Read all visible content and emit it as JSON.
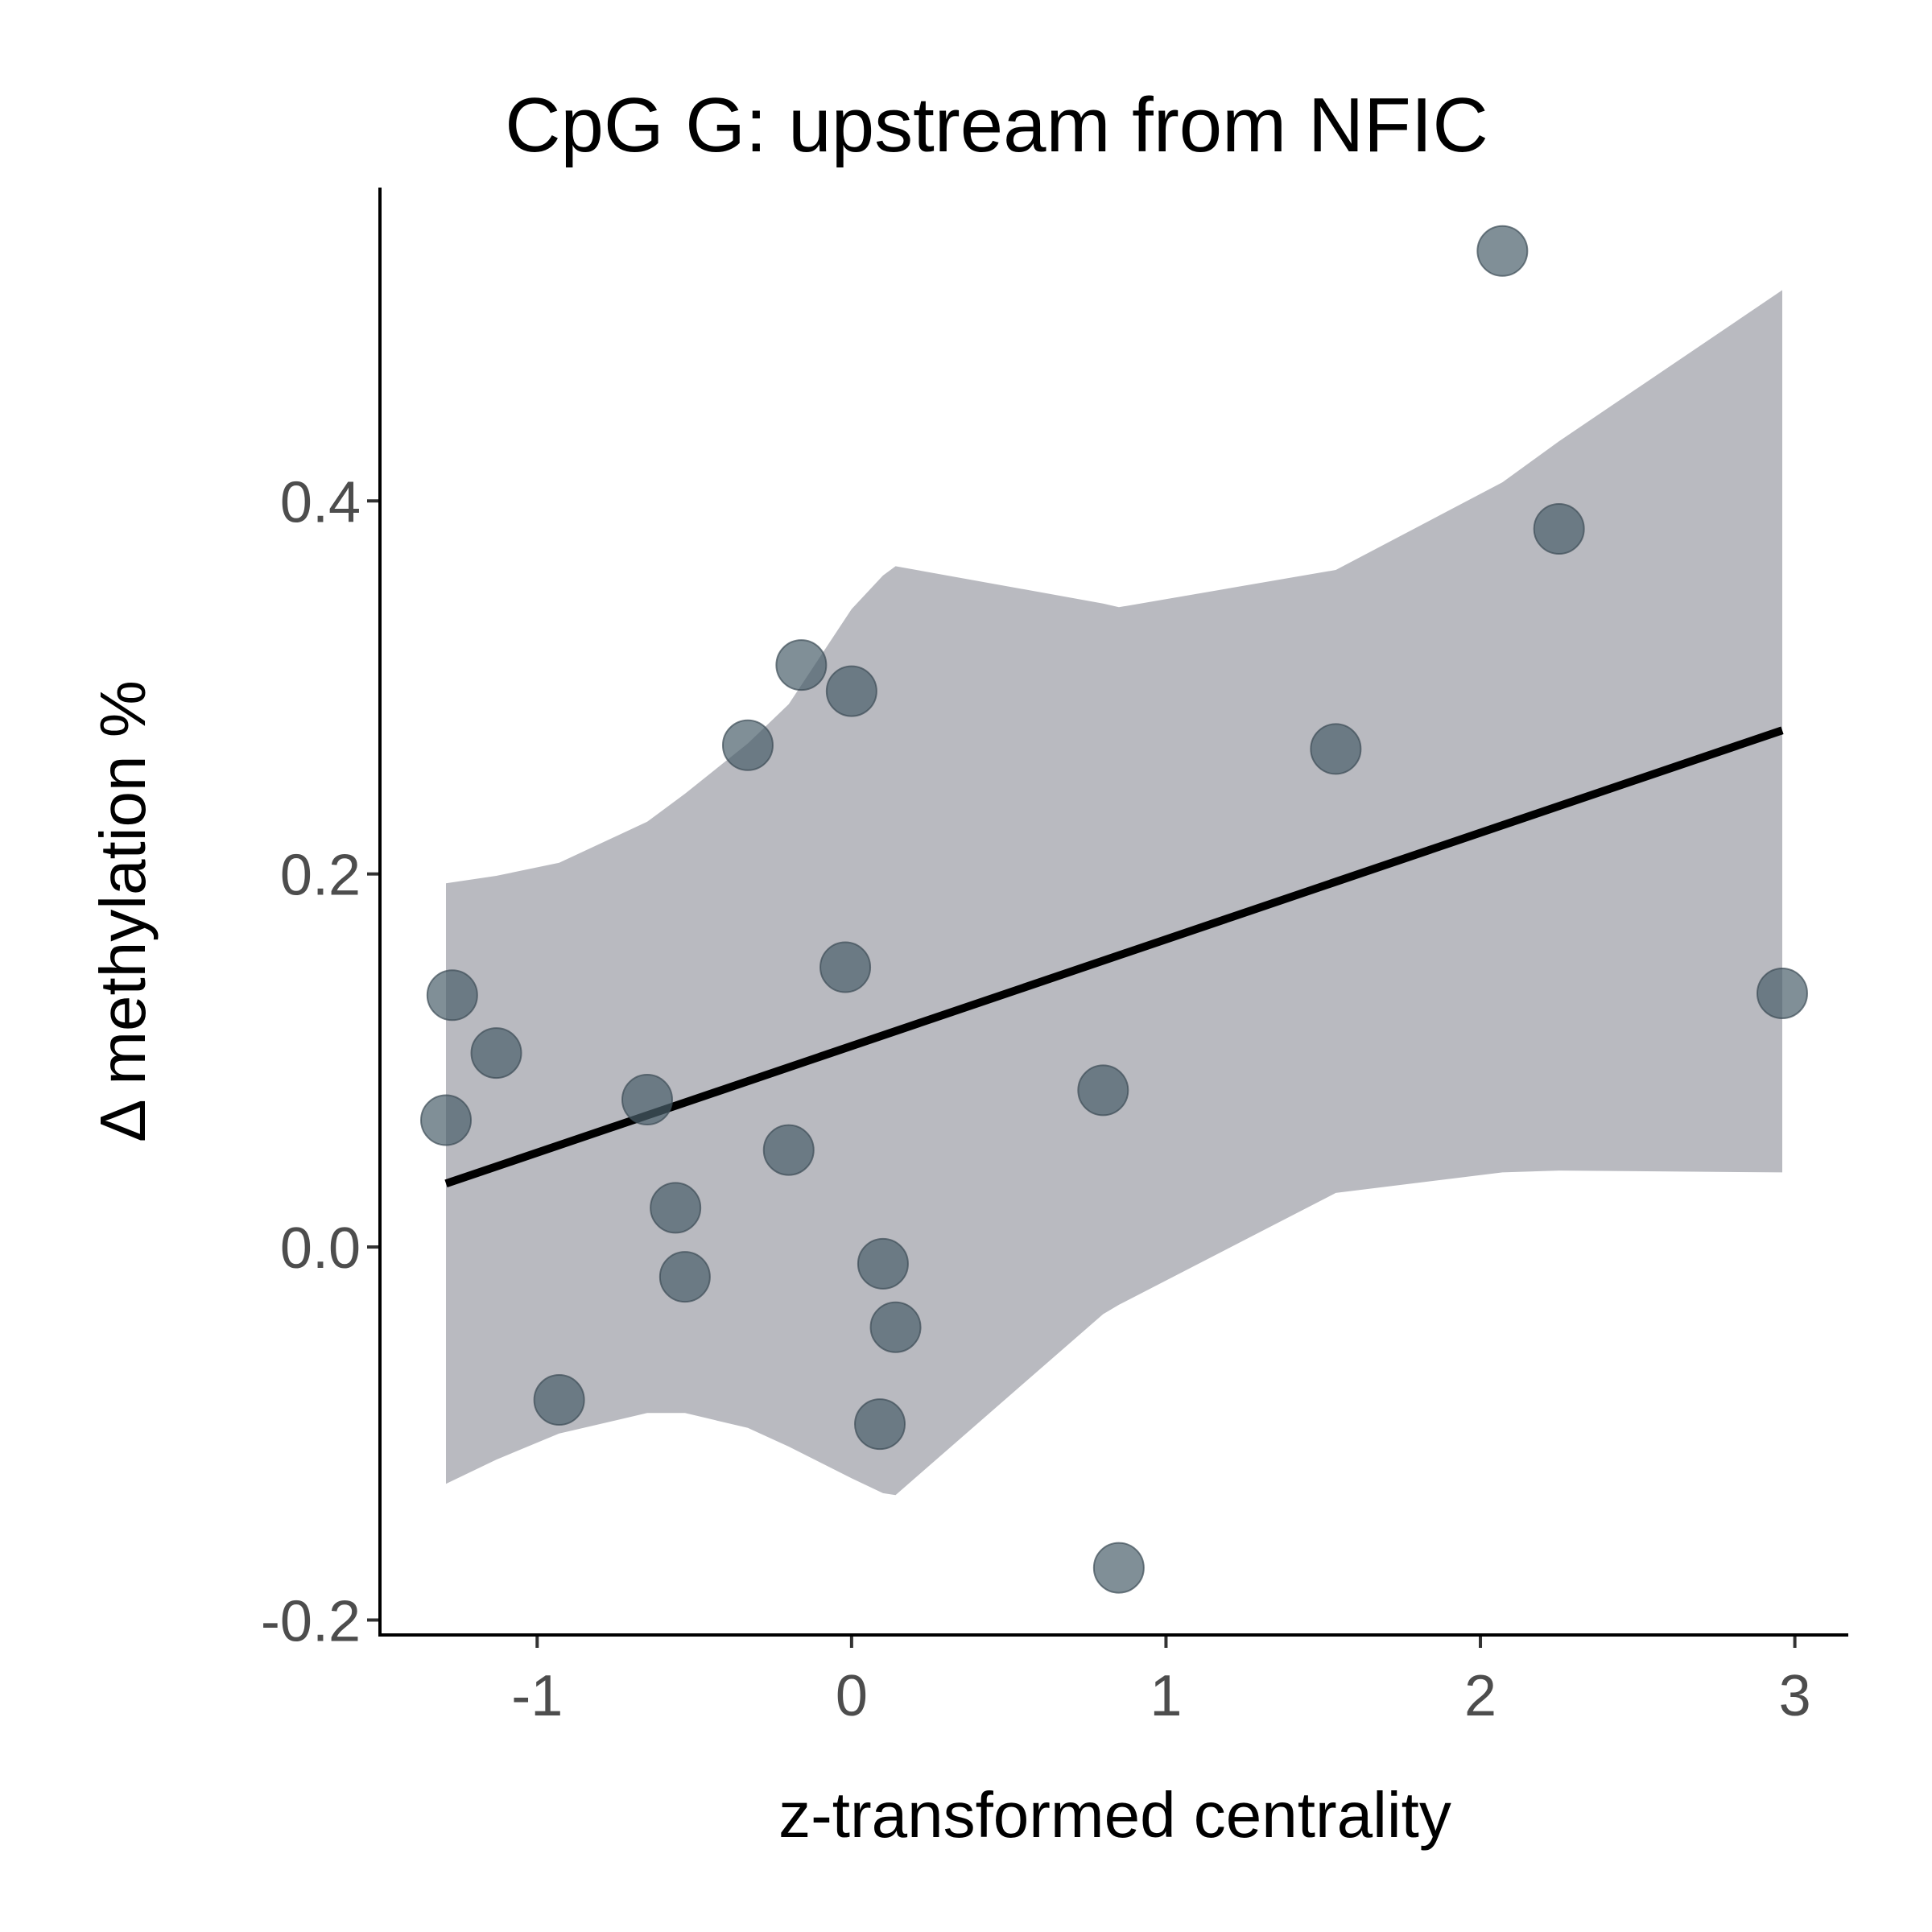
{
  "chart_data": {
    "type": "scatter",
    "title": "CpG G: upstream from NFIC",
    "xlabel": "z-transformed centrality",
    "ylabel": "Δ methylation %",
    "xlim": [
      -1.5,
      3.17
    ],
    "ylim": [
      -0.208,
      0.568
    ],
    "x_ticks": [
      -1,
      0,
      1,
      2,
      3
    ],
    "x_tick_labels": [
      "-1",
      "0",
      "1",
      "2",
      "3"
    ],
    "y_ticks": [
      -0.2,
      0.0,
      0.2,
      0.4
    ],
    "y_tick_labels": [
      "-0.2",
      "0.0",
      "0.2",
      "0.4"
    ],
    "grid": false,
    "series": [
      {
        "points": [
          {
            "x": 2.07,
            "y": 0.534
          },
          {
            "x": 2.25,
            "y": 0.385
          },
          {
            "x": -0.16,
            "y": 0.312
          },
          {
            "x": 0.0,
            "y": 0.298
          },
          {
            "x": -0.33,
            "y": 0.269
          },
          {
            "x": 1.54,
            "y": 0.267
          },
          {
            "x": -0.02,
            "y": 0.15
          },
          {
            "x": -1.27,
            "y": 0.135
          },
          {
            "x": 2.96,
            "y": 0.136
          },
          {
            "x": -1.13,
            "y": 0.104
          },
          {
            "x": 0.8,
            "y": 0.084
          },
          {
            "x": -0.65,
            "y": 0.079
          },
          {
            "x": -1.29,
            "y": 0.068
          },
          {
            "x": -0.2,
            "y": 0.052
          },
          {
            "x": -0.56,
            "y": 0.021
          },
          {
            "x": 0.1,
            "y": -0.009
          },
          {
            "x": -0.53,
            "y": -0.016
          },
          {
            "x": 0.14,
            "y": -0.043
          },
          {
            "x": -0.93,
            "y": -0.082
          },
          {
            "x": 0.09,
            "y": -0.095
          },
          {
            "x": 0.85,
            "y": -0.172
          }
        ],
        "color": "#4a5f6b"
      }
    ],
    "trend_line": {
      "x": [
        -1.29,
        2.96
      ],
      "y": [
        0.034,
        0.277
      ],
      "color": "#000000"
    },
    "confidence_band": {
      "x": [
        -1.29,
        -1.13,
        -0.93,
        -0.65,
        -0.53,
        -0.33,
        -0.2,
        0.0,
        0.1,
        0.14,
        0.8,
        0.85,
        1.54,
        2.07,
        2.25,
        2.96
      ],
      "upper": [
        0.195,
        0.199,
        0.206,
        0.228,
        0.243,
        0.27,
        0.291,
        0.342,
        0.36,
        0.365,
        0.345,
        0.343,
        0.363,
        0.41,
        0.432,
        0.513
      ],
      "lower": [
        -0.127,
        -0.114,
        -0.1,
        -0.089,
        -0.089,
        -0.097,
        -0.107,
        -0.124,
        -0.132,
        -0.133,
        -0.036,
        -0.031,
        0.029,
        0.04,
        0.041,
        0.04
      ],
      "color": "#b9bac0"
    }
  }
}
